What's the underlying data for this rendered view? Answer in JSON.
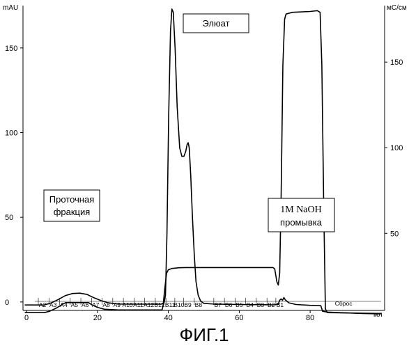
{
  "chart_data": {
    "type": "line",
    "title": "",
    "xlabel": "мл",
    "ylabel_left": "mAU",
    "ylabel_right": "мС/см",
    "xlim": [
      -1,
      101
    ],
    "x_ticks": [
      0,
      20,
      40,
      60,
      80
    ],
    "ylim_left": [
      -5,
      175
    ],
    "y_ticks_left": [
      0,
      50,
      100,
      150
    ],
    "ylim_right": [
      5,
      183
    ],
    "y_ticks_right": [
      50,
      100,
      150
    ],
    "grid": false,
    "series": [
      {
        "axis": "left",
        "points": [
          [
            -0.5,
            -1.8
          ],
          [
            5,
            -1.8
          ],
          [
            7,
            -0.5
          ],
          [
            9,
            1.5
          ],
          [
            11,
            3.8
          ],
          [
            13,
            5.0
          ],
          [
            15,
            5.2
          ],
          [
            17,
            4.5
          ],
          [
            19,
            2.5
          ],
          [
            21,
            0.8
          ],
          [
            23,
            -0.5
          ],
          [
            26,
            -1.2
          ],
          [
            30,
            -1.3
          ],
          [
            35,
            -1.3
          ],
          [
            38,
            -1.3
          ],
          [
            38.8,
            -0.5
          ],
          [
            39.2,
            4
          ],
          [
            39.6,
            40
          ],
          [
            40.1,
            110
          ],
          [
            40.6,
            160
          ],
          [
            41.0,
            173
          ],
          [
            41.4,
            171
          ],
          [
            41.9,
            150
          ],
          [
            42.5,
            115
          ],
          [
            43.2,
            91
          ],
          [
            43.8,
            86
          ],
          [
            44.4,
            86
          ],
          [
            44.9,
            89
          ],
          [
            45.3,
            93
          ],
          [
            45.6,
            94
          ],
          [
            45.9,
            91
          ],
          [
            46.3,
            75
          ],
          [
            46.8,
            50
          ],
          [
            47.3,
            28
          ],
          [
            47.8,
            12
          ],
          [
            48.4,
            4
          ],
          [
            49.1,
            0.5
          ],
          [
            50,
            -0.8
          ],
          [
            53,
            -1.3
          ],
          [
            60,
            -1.5
          ],
          [
            65,
            -1.6
          ],
          [
            70,
            -1.7
          ],
          [
            71,
            -1.2
          ],
          [
            71.4,
            1.0
          ],
          [
            71.8,
            1.8
          ],
          [
            72.2,
            1.0
          ],
          [
            72.6,
            2.6
          ],
          [
            73,
            1.2
          ],
          [
            74,
            -0.5
          ],
          [
            76,
            -1.5
          ],
          [
            80,
            -2.0
          ],
          [
            83,
            -2.2
          ],
          [
            83.5,
            -5.5
          ],
          [
            85,
            -6.0
          ],
          [
            90,
            -6.5
          ],
          [
            95,
            -6.8
          ],
          [
            100,
            -7.0
          ]
        ]
      },
      {
        "axis": "left",
        "points": [
          [
            -0.5,
            -6.3
          ],
          [
            5,
            -6.3
          ],
          [
            6.5,
            -5.5
          ],
          [
            8.5,
            -3.5
          ],
          [
            10,
            -1.5
          ],
          [
            11,
            -0.4
          ],
          [
            15,
            -0.4
          ],
          [
            17.5,
            -0.4
          ],
          [
            18.5,
            -1.8
          ],
          [
            20,
            -3.2
          ],
          [
            22,
            -4.3
          ],
          [
            26,
            -4.7
          ],
          [
            33,
            -4.7
          ],
          [
            38.2,
            -4.7
          ],
          [
            38.5,
            -2.5
          ],
          [
            39.0,
            8
          ],
          [
            39.5,
            17
          ],
          [
            40,
            19
          ],
          [
            41,
            19.8
          ],
          [
            43,
            20.2
          ],
          [
            45,
            20.3
          ],
          [
            50,
            20.3
          ],
          [
            55,
            20.3
          ],
          [
            60,
            20.3
          ],
          [
            65,
            20.3
          ],
          [
            69.5,
            20.3
          ],
          [
            70,
            19.5
          ],
          [
            70.6,
            12
          ],
          [
            71,
            10
          ],
          [
            71.4,
            17
          ],
          [
            71.8,
            60
          ],
          [
            72.3,
            140
          ],
          [
            72.8,
            167
          ],
          [
            73.2,
            170
          ],
          [
            75,
            171
          ],
          [
            80,
            171.5
          ],
          [
            82,
            172
          ],
          [
            82.8,
            171
          ],
          [
            83.3,
            140
          ],
          [
            83.8,
            60
          ],
          [
            84.3,
            -4
          ],
          [
            84.8,
            -6.3
          ],
          [
            90,
            -6.5
          ],
          [
            100,
            -6.8
          ]
        ]
      }
    ],
    "fractions": {
      "a_labels": [
        "A2",
        "A3",
        "A4",
        "A5",
        "A6",
        "A7",
        "A8",
        "A9",
        "A10",
        "A11",
        "A12",
        "B12"
      ],
      "b_labels": [
        "B11",
        "B10",
        "B9",
        "B8",
        "B7",
        "B6",
        "B5",
        "B4",
        "B3",
        "B2",
        "B1"
      ],
      "end_label": "Сброс"
    },
    "annotations": [
      {
        "text": "Элюат"
      },
      {
        "lines": [
          "Проточная",
          "фракция"
        ]
      },
      {
        "lines": [
          "1M NaOH",
          "промывка"
        ]
      }
    ]
  },
  "caption": "ФИГ.1"
}
